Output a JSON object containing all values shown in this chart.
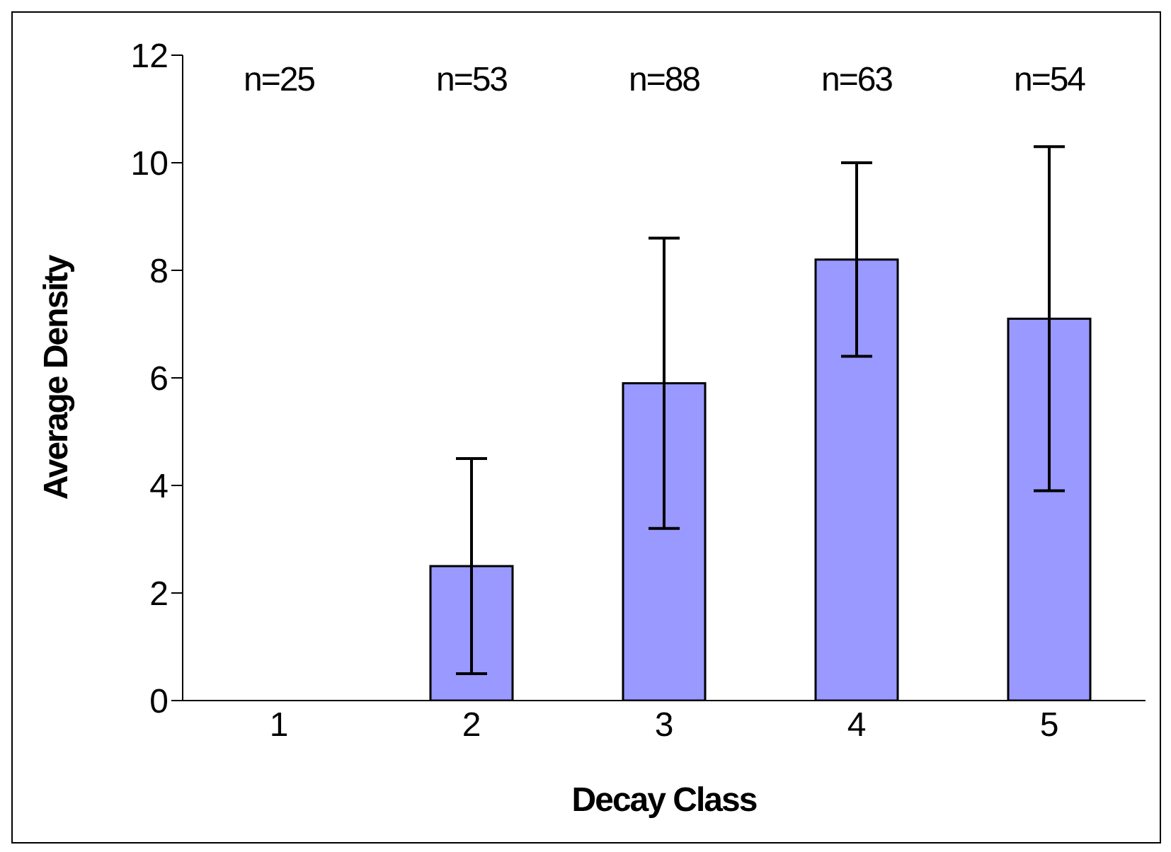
{
  "chart_data": {
    "type": "bar",
    "xlabel": "Decay Class",
    "ylabel": "Average Density",
    "categories": [
      "1",
      "2",
      "3",
      "4",
      "5"
    ],
    "values": [
      0,
      2.5,
      5.9,
      8.2,
      7.1
    ],
    "errors": [
      null,
      [
        0.5,
        4.5
      ],
      [
        3.2,
        8.6
      ],
      [
        6.4,
        10.0
      ],
      [
        3.9,
        10.3
      ]
    ],
    "color": "#9999ff",
    "ylim": [
      0,
      12
    ],
    "yticks": [
      0,
      2,
      4,
      6,
      8,
      10,
      12
    ],
    "grid": false,
    "legend": false,
    "annotations": [
      "n=25",
      "n=53",
      "n=88",
      "n=63",
      "n=54"
    ]
  }
}
